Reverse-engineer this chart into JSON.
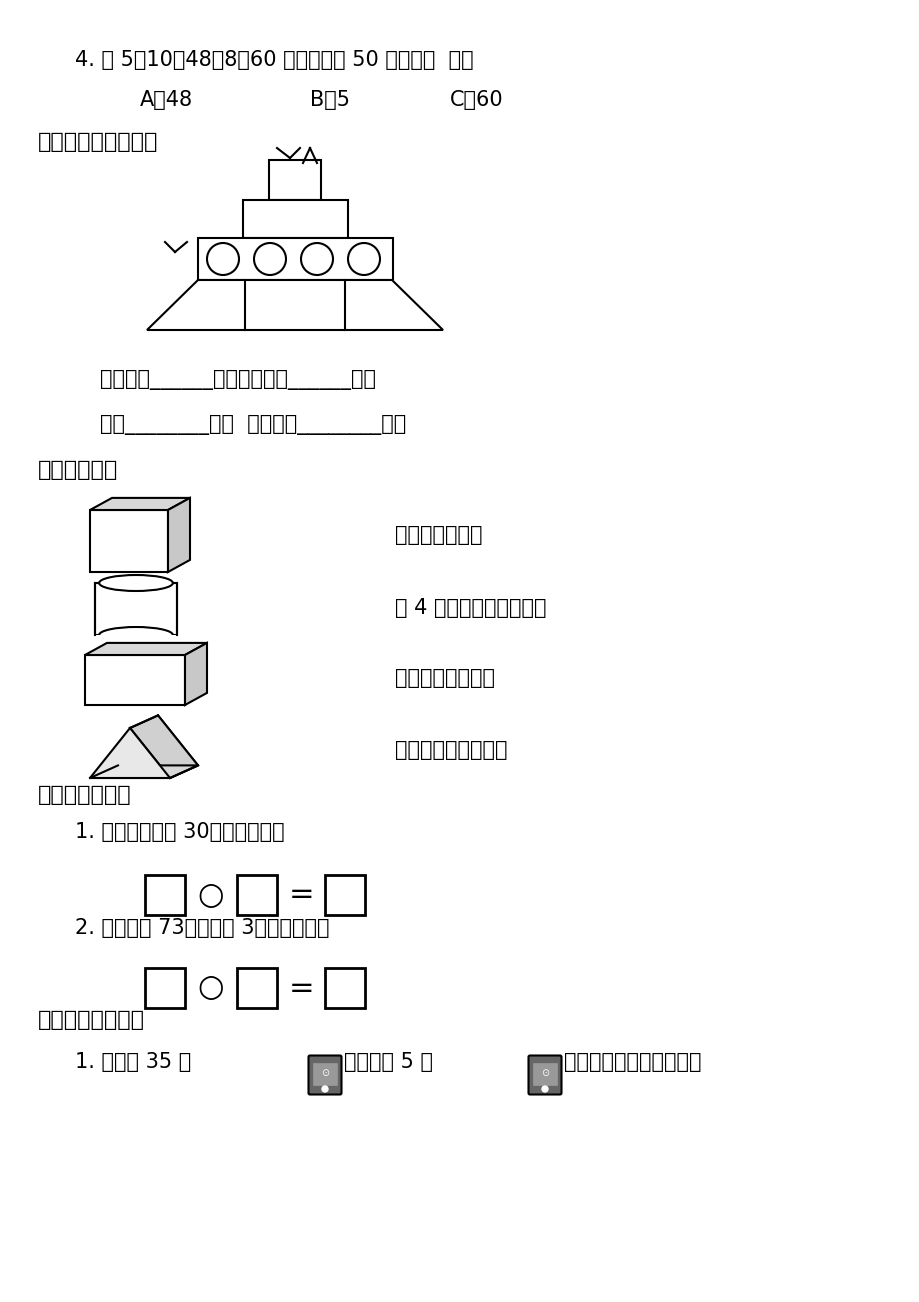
{
  "bg_color": "#ffffff",
  "text_color": "#000000",
  "q4_text": "4. 在 5、10、48、8、60 中，最接近 50 的数是（  ）。",
  "q4_options_a": "A、48",
  "q4_options_b": "B、5",
  "q4_options_c": "C、60",
  "q5_title": "五、数一数，填空。",
  "q5_line1a": "三角形有______个，长方形有______个，",
  "q5_line2a": "圆有________个，  正方形有________个。",
  "q6_title": "六、连一连。",
  "q6_right": [
    "有两个圆的物体",
    "有 4 个面是长方形的物体",
    "都是正方形的物体",
    "有两个三角形的物体"
  ],
  "q7_title": "七、列式计算。",
  "q7_p1": "1. 两个加数都是 30，和是多少？",
  "q7_p2": "2. 被减数是 73，减数是 3，差是多少？",
  "q8_title": "七、实践与运用。",
  "q8_line1a": "1. 聪聪有 35 本",
  "q8_line1b": "，小红有 5 本",
  "q8_line1c": "，聪聪比小红多多少本？"
}
